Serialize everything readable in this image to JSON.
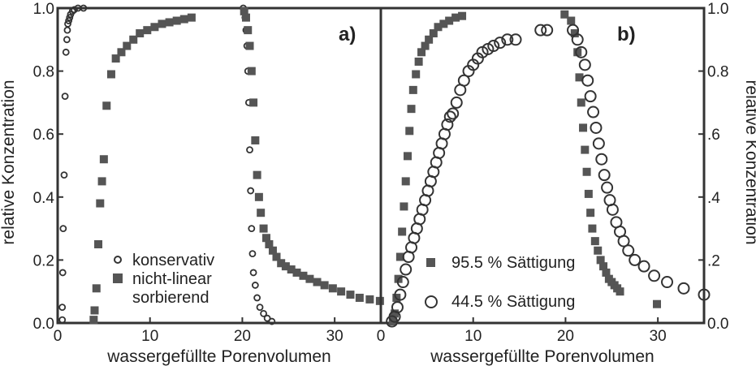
{
  "chart_data": [
    {
      "type": "scatter",
      "panel_label": "a)",
      "xlabel": "wassergefüllte Porenvolumen",
      "ylabel": "relative Konzentration",
      "xlim": [
        0,
        35
      ],
      "ylim": [
        0,
        1
      ],
      "x_ticks": [
        "0",
        "10",
        "20",
        "30"
      ],
      "y_ticks": [
        "0.0",
        "0.2",
        "0.4",
        "0.6",
        "0.8",
        "1.0"
      ],
      "legend_position": "bottom-center",
      "series": [
        {
          "name": "konservativ",
          "marker": "open-circle-small",
          "x": [
            0.5,
            0.5,
            0.55,
            0.6,
            0.7,
            0.8,
            0.9,
            1.0,
            1.05,
            1.1,
            1.2,
            1.3,
            1.4,
            1.6,
            1.8,
            2.2,
            2.8,
            20.1,
            20.2,
            20.3,
            20.4,
            20.5,
            20.6,
            20.7,
            20.8,
            20.9,
            21.0,
            21.1,
            21.2,
            21.4,
            21.6,
            21.9,
            22.3,
            22.7,
            23.2
          ],
          "y": [
            0.01,
            0.05,
            0.16,
            0.3,
            0.47,
            0.72,
            0.86,
            0.9,
            0.93,
            0.95,
            0.96,
            0.97,
            0.98,
            0.99,
            0.995,
            1.0,
            1.0,
            1.0,
            0.99,
            0.97,
            0.93,
            0.88,
            0.8,
            0.7,
            0.55,
            0.42,
            0.3,
            0.22,
            0.16,
            0.12,
            0.08,
            0.05,
            0.03,
            0.015,
            0.005
          ]
        },
        {
          "name": "nicht-linear sorbierend",
          "marker": "filled-square",
          "x": [
            3.9,
            4.0,
            4.2,
            4.4,
            4.6,
            4.8,
            5.0,
            5.3,
            5.8,
            6.3,
            6.9,
            7.5,
            8.2,
            8.9,
            9.7,
            10.5,
            11.3,
            12.1,
            12.9,
            13.7,
            14.5,
            20.2,
            20.4,
            20.6,
            20.8,
            21.0,
            21.2,
            21.4,
            21.6,
            21.8,
            22.0,
            22.3,
            22.6,
            22.9,
            23.3,
            23.7,
            24.2,
            24.7,
            25.3,
            25.9,
            26.6,
            27.3,
            28.1,
            28.9,
            29.8,
            30.7,
            31.7,
            32.7,
            33.8,
            34.9
          ],
          "y": [
            0.01,
            0.04,
            0.11,
            0.25,
            0.38,
            0.45,
            0.52,
            0.69,
            0.79,
            0.84,
            0.86,
            0.88,
            0.9,
            0.92,
            0.93,
            0.94,
            0.95,
            0.955,
            0.96,
            0.965,
            0.97,
            0.99,
            0.97,
            0.93,
            0.88,
            0.8,
            0.7,
            0.58,
            0.47,
            0.4,
            0.35,
            0.3,
            0.27,
            0.25,
            0.23,
            0.21,
            0.19,
            0.18,
            0.17,
            0.16,
            0.15,
            0.14,
            0.13,
            0.12,
            0.11,
            0.1,
            0.09,
            0.08,
            0.075,
            0.07
          ]
        }
      ]
    },
    {
      "type": "scatter",
      "panel_label": "b)",
      "xlabel": "wassergefüllte Porenvolumen",
      "ylabel": "relative Konzentration",
      "xlim": [
        0,
        35
      ],
      "ylim": [
        0,
        1
      ],
      "x_ticks": [
        "0",
        "10",
        "20",
        "30"
      ],
      "y_ticks": [
        "0.0",
        ".2",
        ".4",
        ".6",
        "0.8",
        "1.0"
      ],
      "legend_position": "bottom-center",
      "series": [
        {
          "name": "95.5 % Sättigung",
          "marker": "filled-square",
          "x": [
            1.3,
            1.5,
            1.7,
            1.9,
            2.1,
            2.3,
            2.5,
            2.7,
            2.9,
            3.1,
            3.3,
            3.5,
            3.8,
            4.1,
            4.4,
            4.8,
            5.2,
            5.7,
            6.2,
            6.8,
            7.4,
            8.1,
            8.8,
            19.9,
            20.6,
            21.0,
            21.3,
            21.5,
            21.7,
            21.9,
            22.1,
            22.3,
            22.5,
            22.7,
            22.9,
            23.2,
            23.5,
            23.8,
            24.1,
            24.4,
            24.7,
            25.0,
            25.3,
            25.6,
            25.9,
            29.9
          ],
          "y": [
            0.005,
            0.03,
            0.08,
            0.14,
            0.21,
            0.29,
            0.37,
            0.45,
            0.53,
            0.61,
            0.68,
            0.74,
            0.79,
            0.83,
            0.86,
            0.88,
            0.9,
            0.92,
            0.94,
            0.95,
            0.96,
            0.97,
            0.975,
            0.98,
            0.96,
            0.92,
            0.86,
            0.78,
            0.7,
            0.62,
            0.55,
            0.48,
            0.41,
            0.35,
            0.3,
            0.26,
            0.23,
            0.2,
            0.18,
            0.16,
            0.14,
            0.13,
            0.12,
            0.11,
            0.1,
            0.06
          ]
        },
        {
          "name": "44.5 % Sättigung",
          "marker": "open-circle-large",
          "x": [
            1.2,
            1.5,
            1.8,
            2.1,
            2.4,
            2.7,
            3.0,
            3.3,
            3.6,
            3.9,
            4.2,
            4.5,
            4.8,
            5.1,
            5.4,
            5.7,
            6.0,
            6.3,
            6.6,
            6.9,
            7.2,
            7.5,
            7.8,
            8.2,
            8.6,
            9.0,
            9.5,
            10.0,
            10.5,
            11.0,
            11.6,
            12.2,
            12.9,
            13.7,
            14.6,
            17.3,
            18.0,
            20.8,
            21.3,
            21.7,
            22.1,
            22.4,
            22.7,
            23.0,
            23.3,
            23.6,
            23.9,
            24.2,
            24.5,
            24.8,
            25.1,
            25.5,
            25.9,
            26.3,
            26.8,
            27.5,
            28.5,
            29.6,
            31.0,
            32.8,
            35.0
          ],
          "y": [
            0.005,
            0.02,
            0.05,
            0.09,
            0.13,
            0.17,
            0.21,
            0.24,
            0.27,
            0.3,
            0.33,
            0.36,
            0.39,
            0.42,
            0.45,
            0.48,
            0.51,
            0.54,
            0.57,
            0.6,
            0.63,
            0.655,
            0.665,
            0.7,
            0.74,
            0.77,
            0.8,
            0.82,
            0.84,
            0.86,
            0.87,
            0.88,
            0.89,
            0.9,
            0.9,
            0.93,
            0.93,
            0.93,
            0.9,
            0.86,
            0.82,
            0.77,
            0.72,
            0.67,
            0.62,
            0.57,
            0.52,
            0.47,
            0.43,
            0.39,
            0.36,
            0.32,
            0.29,
            0.26,
            0.23,
            0.2,
            0.18,
            0.15,
            0.13,
            0.11,
            0.09
          ]
        }
      ]
    }
  ]
}
